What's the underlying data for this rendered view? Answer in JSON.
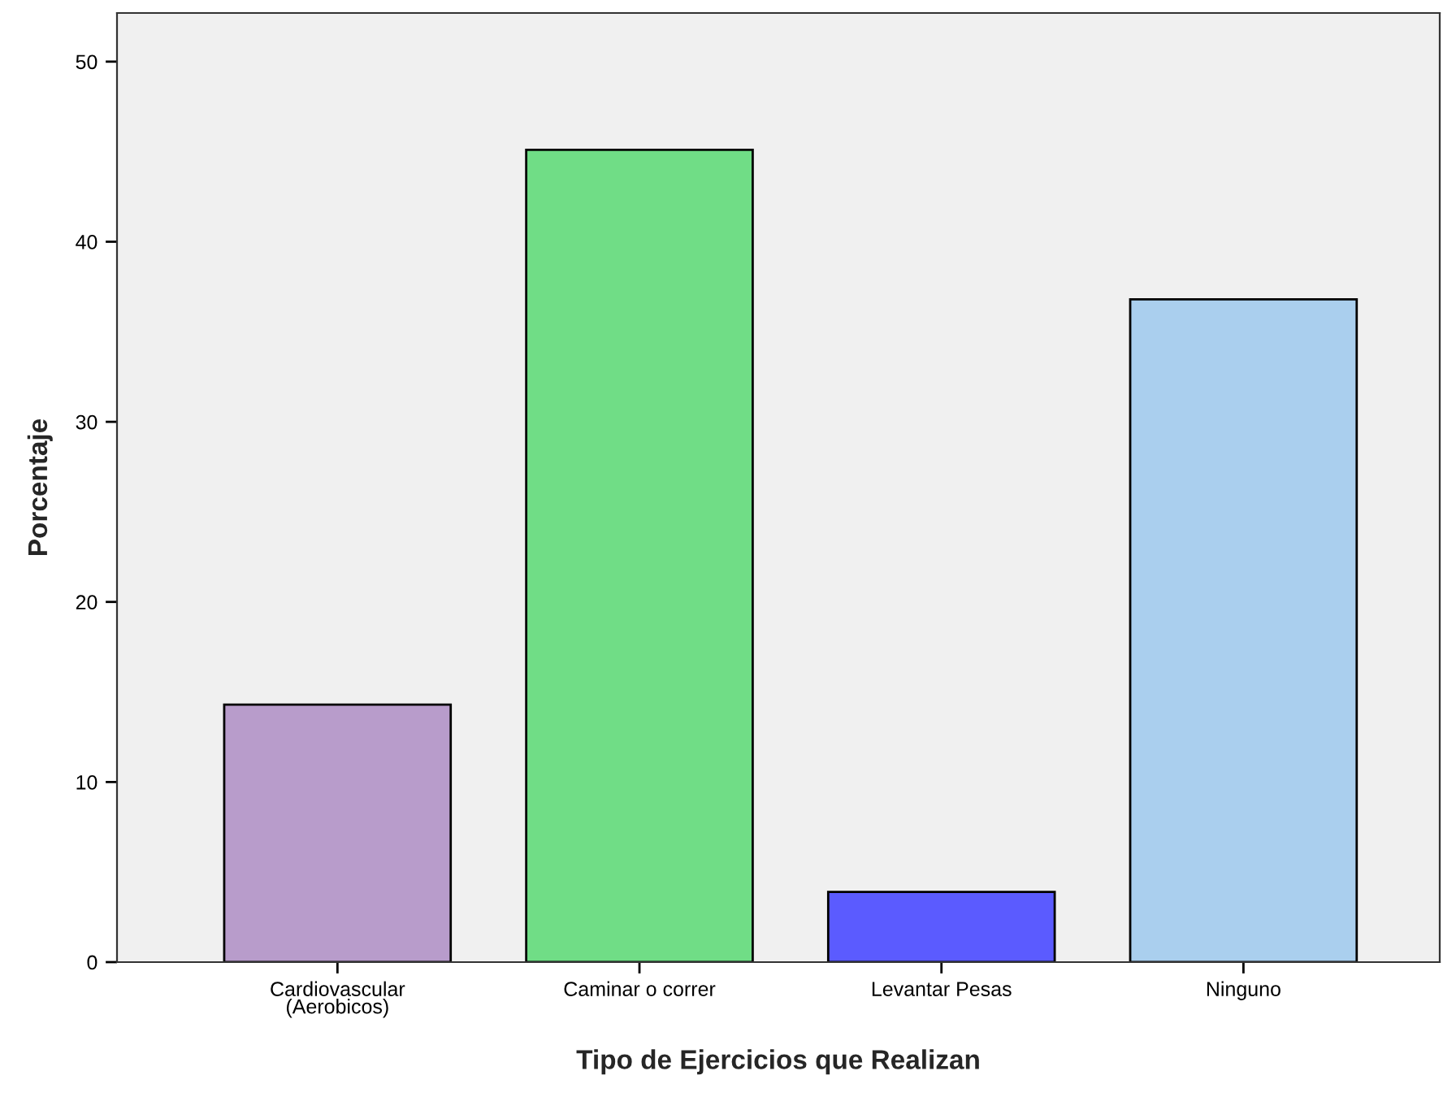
{
  "chart_data": {
    "type": "bar",
    "xlabel": "Tipo de Ejercicios que Realizan",
    "ylabel": "Porcentaje",
    "categories": [
      "Cardiovascular\n(Aerobicos)",
      "Caminar o correr",
      "Levantar Pesas",
      "Ninguno"
    ],
    "values": [
      14.3,
      45.1,
      3.9,
      36.8
    ],
    "colors": [
      "#b89ccb",
      "#70dd86",
      "#5b5bff",
      "#aacfee"
    ],
    "ylim": [
      0,
      52.7
    ],
    "yticks": [
      0,
      10,
      20,
      30,
      40,
      50
    ],
    "grid": false,
    "legend": false
  }
}
